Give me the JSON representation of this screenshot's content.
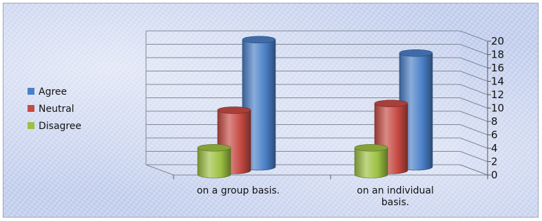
{
  "chart_data": {
    "type": "bar",
    "style": "3d-cylinder",
    "categories": [
      "on a group basis.",
      "on an individual basis."
    ],
    "category_label_lines": [
      [
        "on a group basis."
      ],
      [
        "on an individual",
        "basis."
      ]
    ],
    "series": [
      {
        "name": "Agree",
        "values": [
          19,
          17
        ],
        "color": "#4a7fc7"
      },
      {
        "name": "Neutral",
        "values": [
          9,
          10
        ],
        "color": "#c64a43"
      },
      {
        "name": "Disagree",
        "values": [
          4,
          4
        ],
        "color": "#9cc041"
      }
    ],
    "series_depth_order": [
      "Disagree",
      "Neutral",
      "Agree"
    ],
    "ylim": [
      0,
      20
    ],
    "yticks": [
      0,
      2,
      4,
      6,
      8,
      10,
      12,
      14,
      16,
      18,
      20
    ],
    "y_axis_side": "right",
    "grid": true,
    "legend_position": "left",
    "title": "",
    "xlabel": "",
    "ylabel": ""
  }
}
